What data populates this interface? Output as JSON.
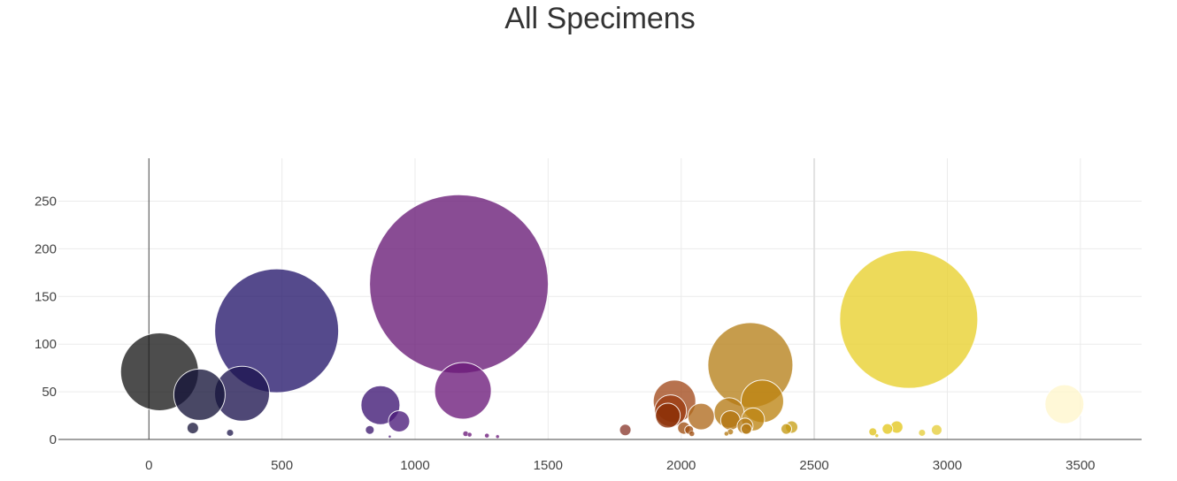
{
  "chart_data": {
    "type": "scatter",
    "subtype": "bubble",
    "title": "All Specimens",
    "xlabel": "",
    "ylabel": "",
    "xlim": [
      -340,
      3730
    ],
    "ylim": [
      0,
      295
    ],
    "x_ticks": [
      0,
      500,
      1000,
      1500,
      2000,
      2500,
      3000,
      3500
    ],
    "y_ticks": [
      0,
      50,
      100,
      150,
      200,
      250
    ],
    "grid": true,
    "legend": "none",
    "colorscale": "earth",
    "points": [
      {
        "x": 40,
        "y": 71,
        "size": 88,
        "color": "#1b1b1b"
      },
      {
        "x": 190,
        "y": 47,
        "size": 58,
        "color": "#16143a"
      },
      {
        "x": 350,
        "y": 48,
        "size": 62,
        "color": "#1e1550"
      },
      {
        "x": 480,
        "y": 114,
        "size": 140,
        "color": "#25176b"
      },
      {
        "x": 165,
        "y": 12,
        "size": 13,
        "color": "#1c1a3d"
      },
      {
        "x": 305,
        "y": 7,
        "size": 8,
        "color": "#221c4e"
      },
      {
        "x": 830,
        "y": 10,
        "size": 10,
        "color": "#3d1a70"
      },
      {
        "x": 870,
        "y": 36,
        "size": 44,
        "color": "#3d1673"
      },
      {
        "x": 940,
        "y": 19,
        "size": 24,
        "color": "#4a1a7a"
      },
      {
        "x": 1165,
        "y": 163,
        "size": 202,
        "color": "#681a76"
      },
      {
        "x": 1180,
        "y": 51,
        "size": 64,
        "color": "#6b1a7a"
      },
      {
        "x": 1190,
        "y": 6,
        "size": 6,
        "color": "#6b1a7a"
      },
      {
        "x": 1205,
        "y": 5,
        "size": 5,
        "color": "#6b1a7a"
      },
      {
        "x": 1270,
        "y": 4,
        "size": 5,
        "color": "#6b1a7a"
      },
      {
        "x": 1310,
        "y": 3,
        "size": 4,
        "color": "#6b1a7a"
      },
      {
        "x": 905,
        "y": 3,
        "size": 3,
        "color": "#4a1a7a"
      },
      {
        "x": 1790,
        "y": 10,
        "size": 13,
        "color": "#8b3a2e"
      },
      {
        "x": 1975,
        "y": 40,
        "size": 48,
        "color": "#a34a1c"
      },
      {
        "x": 1960,
        "y": 30,
        "size": 36,
        "color": "#9b3a10"
      },
      {
        "x": 1950,
        "y": 25,
        "size": 28,
        "color": "#8b2e05"
      },
      {
        "x": 2075,
        "y": 24,
        "size": 30,
        "color": "#b06a1e"
      },
      {
        "x": 2010,
        "y": 12,
        "size": 14,
        "color": "#a05012"
      },
      {
        "x": 2030,
        "y": 10,
        "size": 10,
        "color": "#a05012"
      },
      {
        "x": 2040,
        "y": 6,
        "size": 6,
        "color": "#a05012"
      },
      {
        "x": 2260,
        "y": 78,
        "size": 96,
        "color": "#b6801a"
      },
      {
        "x": 2305,
        "y": 40,
        "size": 48,
        "color": "#bc8412"
      },
      {
        "x": 2180,
        "y": 28,
        "size": 34,
        "color": "#b57a14"
      },
      {
        "x": 2185,
        "y": 20,
        "size": 22,
        "color": "#b37510"
      },
      {
        "x": 2270,
        "y": 21,
        "size": 26,
        "color": "#bc8412"
      },
      {
        "x": 2240,
        "y": 14,
        "size": 18,
        "color": "#b57a14"
      },
      {
        "x": 2245,
        "y": 11,
        "size": 12,
        "color": "#b57a14"
      },
      {
        "x": 2185,
        "y": 8,
        "size": 7,
        "color": "#b57a14"
      },
      {
        "x": 2170,
        "y": 6,
        "size": 5,
        "color": "#b57a14"
      },
      {
        "x": 2395,
        "y": 11,
        "size": 12,
        "color": "#c49812"
      },
      {
        "x": 2415,
        "y": 13,
        "size": 14,
        "color": "#c8a017"
      },
      {
        "x": 2855,
        "y": 126,
        "size": 156,
        "color": "#e8d02c"
      },
      {
        "x": 2810,
        "y": 13,
        "size": 14,
        "color": "#e3c71e"
      },
      {
        "x": 2775,
        "y": 11,
        "size": 12,
        "color": "#e3c71e"
      },
      {
        "x": 2960,
        "y": 10,
        "size": 12,
        "color": "#e6cd3a"
      },
      {
        "x": 2720,
        "y": 8,
        "size": 9,
        "color": "#e0c31c"
      },
      {
        "x": 2905,
        "y": 7,
        "size": 8,
        "color": "#e6cd3a"
      },
      {
        "x": 2735,
        "y": 4,
        "size": 4,
        "color": "#e0c31c"
      },
      {
        "x": 3440,
        "y": 37,
        "size": 44,
        "color": "#fff6cc"
      }
    ]
  }
}
